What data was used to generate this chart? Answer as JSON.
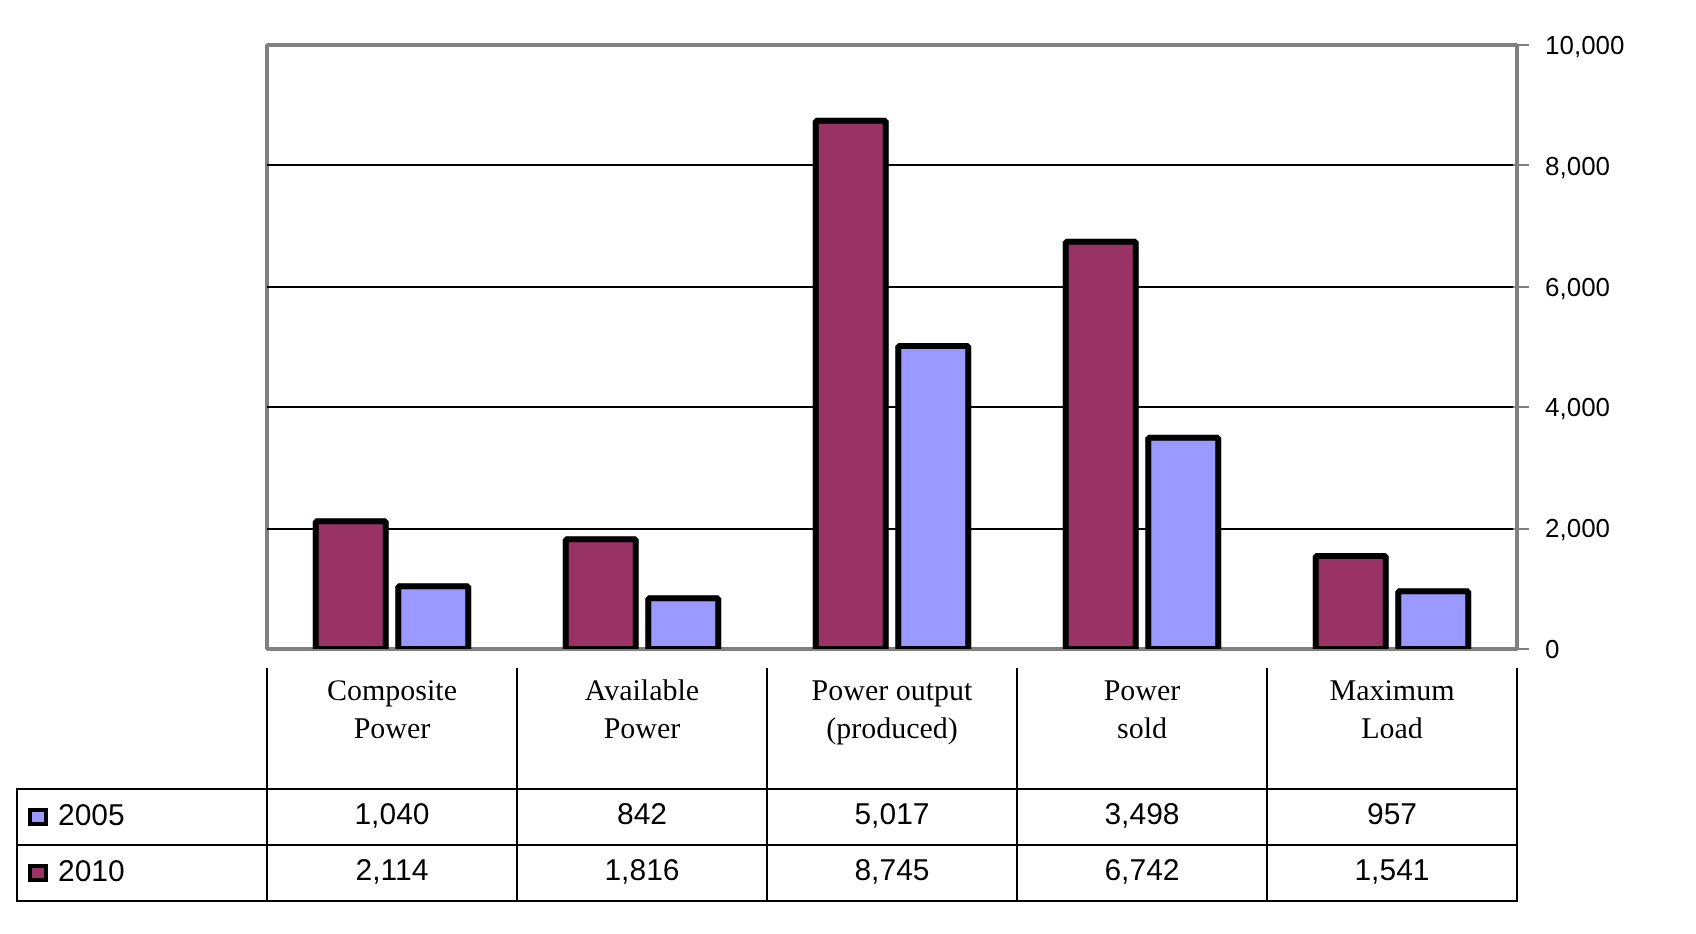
{
  "chart_data": {
    "type": "bar",
    "categories": [
      "Composite Power",
      "Available Power",
      "Power output (produced)",
      "Power sold",
      "Maximum Load"
    ],
    "series": [
      {
        "name": "2010",
        "color": "#993366",
        "values": [
          2114,
          1816,
          8745,
          6742,
          1541
        ],
        "value_labels": [
          "2,114",
          "1,816",
          "8,745",
          "6,742",
          "1,541"
        ]
      },
      {
        "name": "2005",
        "color": "#9999ff",
        "values": [
          1040,
          842,
          5017,
          3498,
          957
        ],
        "value_labels": [
          "1,040",
          "842",
          "5,017",
          "3,498",
          "957"
        ]
      }
    ],
    "ylim": [
      0,
      10000
    ],
    "yticks": [
      0,
      {
        "value": 2000,
        "label": "2,000"
      },
      {
        "value": 4000,
        "label": "4,000"
      },
      {
        "value": 6000,
        "label": "6,000"
      },
      {
        "value": 8000,
        "label": "8,000"
      },
      {
        "value": 10000,
        "label": "10,000"
      }
    ],
    "grid": "y",
    "legend": "bottom left"
  }
}
